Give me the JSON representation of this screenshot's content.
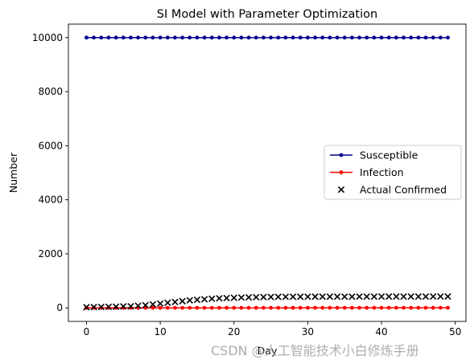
{
  "chart_data": {
    "type": "line",
    "title": "SI Model with Parameter Optimization",
    "xlabel": "Day",
    "ylabel": "Number",
    "xlim": [
      -2.45,
      51.45
    ],
    "ylim": [
      -500,
      10500
    ],
    "xticks": [
      0,
      10,
      20,
      30,
      40,
      50
    ],
    "yticks": [
      0,
      2000,
      4000,
      6000,
      8000,
      10000
    ],
    "grid": false,
    "legend_position": "center-right",
    "x": [
      0,
      1,
      2,
      3,
      4,
      5,
      6,
      7,
      8,
      9,
      10,
      11,
      12,
      13,
      14,
      15,
      16,
      17,
      18,
      19,
      20,
      21,
      22,
      23,
      24,
      25,
      26,
      27,
      28,
      29,
      30,
      31,
      32,
      33,
      34,
      35,
      36,
      37,
      38,
      39,
      40,
      41,
      42,
      43,
      44,
      45,
      46,
      47,
      48,
      49
    ],
    "series": [
      {
        "name": "Susceptible",
        "kind": "line-marker",
        "color": "#00008b",
        "values": [
          10000,
          10000,
          10000,
          10000,
          10000,
          10000,
          10000,
          10000,
          10000,
          10000,
          10000,
          10000,
          10000,
          10000,
          10000,
          10000,
          10000,
          10000,
          10000,
          10000,
          10000,
          10000,
          10000,
          10000,
          10000,
          10000,
          10000,
          10000,
          10000,
          10000,
          10000,
          10000,
          10000,
          10000,
          10000,
          10000,
          10000,
          10000,
          10000,
          10000,
          10000,
          10000,
          10000,
          10000,
          10000,
          10000,
          10000,
          10000,
          10000,
          10000
        ]
      },
      {
        "name": "Infection",
        "kind": "line-marker",
        "color": "#ff0000",
        "values": [
          1,
          1,
          1,
          1,
          1,
          1,
          1,
          1,
          1,
          2,
          2,
          2,
          2,
          2,
          2,
          2,
          2,
          2,
          2,
          3,
          3,
          3,
          3,
          3,
          3,
          3,
          3,
          3,
          3,
          4,
          4,
          4,
          4,
          4,
          4,
          4,
          4,
          4,
          4,
          5,
          5,
          5,
          5,
          5,
          5,
          5,
          5,
          5,
          5,
          6
        ]
      },
      {
        "name": "Actual Confirmed",
        "kind": "scatter-x",
        "color": "#000000",
        "values": [
          27,
          30,
          35,
          40,
          45,
          55,
          60,
          80,
          100,
          130,
          160,
          190,
          220,
          250,
          280,
          300,
          320,
          340,
          355,
          365,
          375,
          385,
          390,
          395,
          400,
          405,
          408,
          410,
          412,
          413,
          414,
          415,
          415,
          416,
          416,
          417,
          417,
          418,
          418,
          418,
          419,
          419,
          419,
          420,
          420,
          420,
          420,
          421,
          421,
          421
        ]
      }
    ]
  },
  "watermark": "CSDN @人工智能技术小白修炼手册"
}
